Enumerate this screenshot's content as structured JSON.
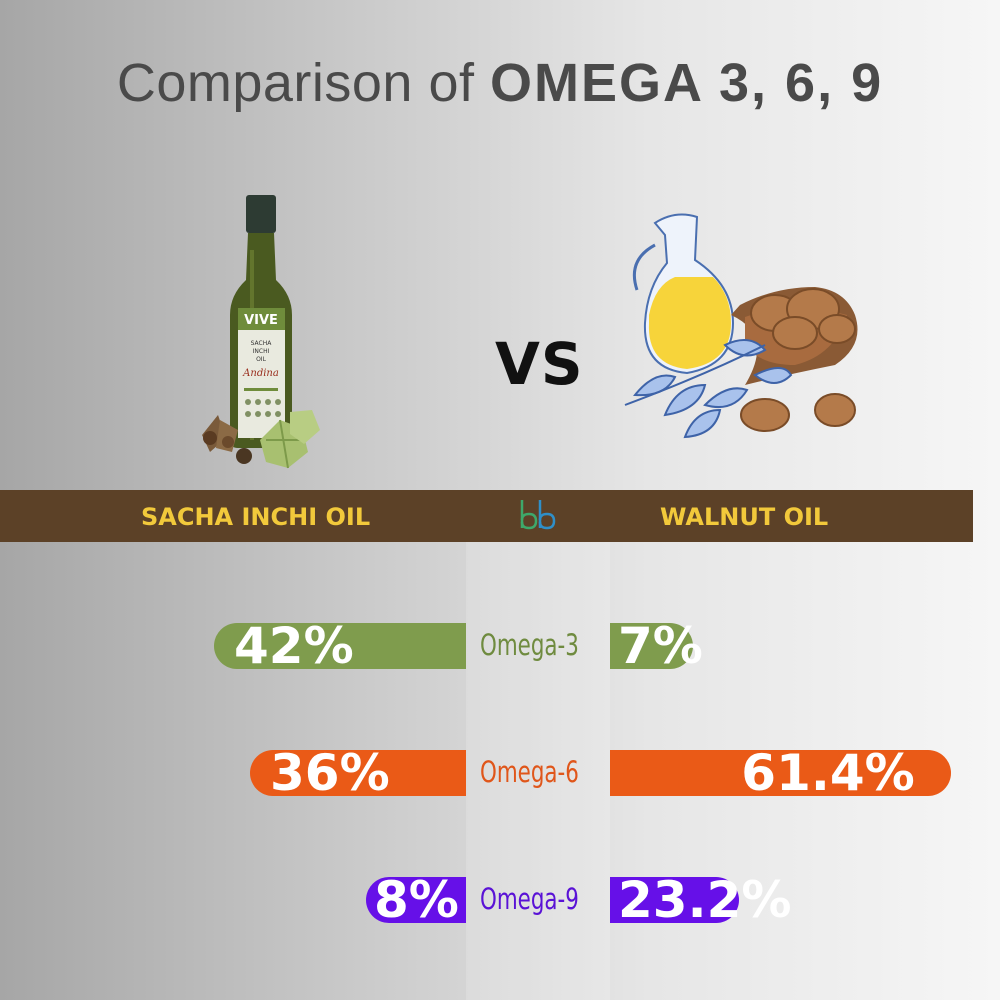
{
  "title": {
    "prefix": "Comparison of ",
    "emphasis": "OMEGA 3, 6, 9"
  },
  "vs_text": "VS",
  "bottle": {
    "brand": "VIVE",
    "line1": "SACHA",
    "line2": "INCHI",
    "line3": "OIL",
    "maker": "Andina"
  },
  "left_product": "SACHA INCHI OIL",
  "right_product": "WALNUT OIL",
  "colors": {
    "omega3": "#7f9c4d",
    "omega6": "#ea5a17",
    "omega9": "#6610e8",
    "band": "#5c4127",
    "band_text": "#f2c93b"
  },
  "chart_data": {
    "type": "bar",
    "categories": [
      "Omega-3",
      "Omega-6",
      "Omega-9"
    ],
    "series": [
      {
        "name": "SACHA INCHI OIL",
        "values": [
          42,
          36,
          8
        ],
        "labels": [
          "42%",
          "36%",
          "8%"
        ]
      },
      {
        "name": "WALNUT OIL",
        "values": [
          7,
          61.4,
          23.2
        ],
        "labels": [
          "7%",
          "61.4%",
          "23.2%"
        ]
      }
    ]
  }
}
